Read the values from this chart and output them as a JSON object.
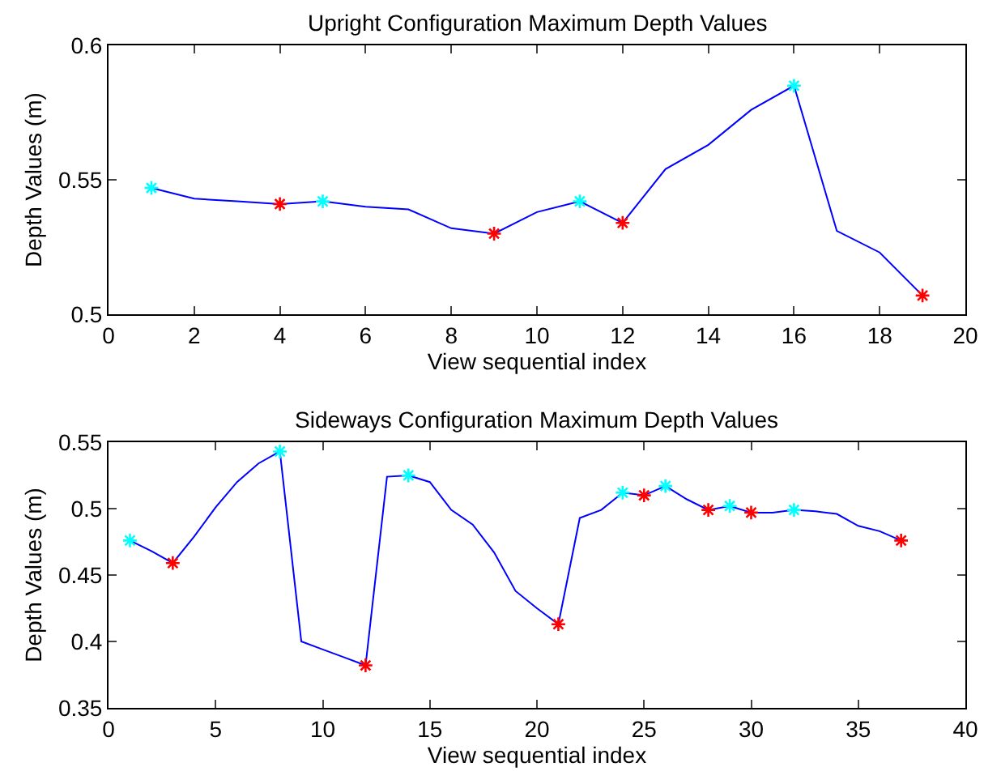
{
  "chart_data": [
    {
      "type": "line",
      "title": "Upright Configuration Maximum Depth Values",
      "xlabel": "View sequential index",
      "ylabel": "Depth Values (m)",
      "xlim": [
        0,
        20
      ],
      "xticks": [
        0,
        2,
        4,
        6,
        8,
        10,
        12,
        14,
        16,
        18,
        20
      ],
      "ylim": [
        0.5,
        0.6
      ],
      "yticks": [
        0.5,
        0.55,
        0.6
      ],
      "series": [
        {
          "color": "#0000ff",
          "marker": "none",
          "x": [
            1,
            2,
            3,
            4,
            5,
            6,
            7,
            8,
            9,
            10,
            11,
            12,
            13,
            14,
            15,
            16,
            17,
            18,
            19
          ],
          "values": [
            0.547,
            0.543,
            0.542,
            0.541,
            0.542,
            0.54,
            0.539,
            0.532,
            0.53,
            0.538,
            0.542,
            0.534,
            0.554,
            0.563,
            0.576,
            0.585,
            0.531,
            0.523,
            0.507
          ]
        },
        {
          "type": "scatter",
          "color": "#00ffff",
          "marker": "cross",
          "x": [
            1,
            5,
            11,
            16
          ],
          "values": [
            0.547,
            0.542,
            0.542,
            0.585
          ]
        },
        {
          "type": "scatter",
          "color": "#ff0000",
          "marker": "cross",
          "x": [
            4,
            9,
            12,
            19
          ],
          "values": [
            0.541,
            0.53,
            0.534,
            0.507
          ]
        }
      ]
    },
    {
      "type": "line",
      "title": "Sideways Configuration Maximum Depth Values",
      "xlabel": "View sequential index",
      "ylabel": "Depth Values (m)",
      "xlim": [
        0,
        40
      ],
      "xticks": [
        0,
        5,
        10,
        15,
        20,
        25,
        30,
        35,
        40
      ],
      "ylim": [
        0.35,
        0.55
      ],
      "yticks": [
        0.35,
        0.4,
        0.45,
        0.5,
        0.55
      ],
      "series": [
        {
          "color": "#0000ff",
          "marker": "none",
          "x": [
            1,
            2,
            3,
            4,
            5,
            6,
            7,
            8,
            9,
            10,
            11,
            12,
            13,
            14,
            15,
            16,
            17,
            18,
            19,
            20,
            21,
            22,
            23,
            24,
            25,
            26,
            27,
            28,
            29,
            30,
            31,
            32,
            33,
            34,
            35,
            36,
            37
          ],
          "values": [
            0.476,
            0.468,
            0.459,
            0.479,
            0.501,
            0.52,
            0.534,
            0.543,
            0.4,
            0.394,
            0.388,
            0.382,
            0.524,
            0.525,
            0.52,
            0.499,
            0.488,
            0.467,
            0.438,
            0.425,
            0.413,
            0.493,
            0.499,
            0.512,
            0.51,
            0.517,
            0.507,
            0.499,
            0.502,
            0.497,
            0.497,
            0.499,
            0.498,
            0.496,
            0.487,
            0.483,
            0.476
          ]
        },
        {
          "type": "scatter",
          "color": "#00ffff",
          "marker": "cross",
          "x": [
            1,
            8,
            14,
            24,
            26,
            29,
            32
          ],
          "values": [
            0.476,
            0.543,
            0.525,
            0.512,
            0.517,
            0.502,
            0.499
          ]
        },
        {
          "type": "scatter",
          "color": "#ff0000",
          "marker": "cross",
          "x": [
            3,
            12,
            21,
            25,
            28,
            30,
            37
          ],
          "values": [
            0.459,
            0.382,
            0.413,
            0.51,
            0.499,
            0.497,
            0.476
          ]
        }
      ]
    }
  ]
}
